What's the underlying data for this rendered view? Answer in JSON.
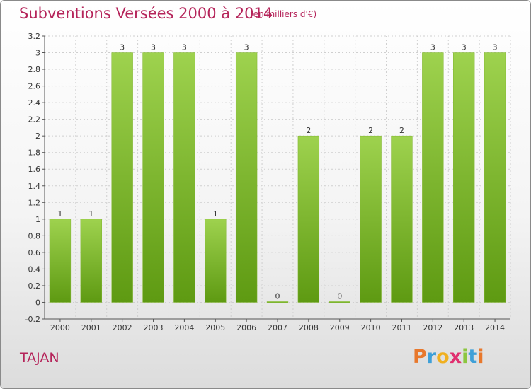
{
  "header": {
    "title": "Subventions Versées 2000 à 2014",
    "unit": "(en milliers d'€)"
  },
  "footer": {
    "commune": "TAJAN",
    "logo": {
      "letters": [
        "P",
        "r",
        "o",
        "x",
        "i",
        "t",
        "i"
      ],
      "colors": [
        "#e8782c",
        "#3fa0d8",
        "#f0b020",
        "#e03070",
        "#8cc63f",
        "#3fa0d8",
        "#e8782c"
      ]
    }
  },
  "chart_data": {
    "type": "bar",
    "title": "Subventions Versées 2000 à 2014",
    "subtitle": "(en milliers d'€)",
    "categories": [
      "2000",
      "2001",
      "2002",
      "2003",
      "2004",
      "2005",
      "2006",
      "2007",
      "2008",
      "2009",
      "2010",
      "2011",
      "2012",
      "2013",
      "2014"
    ],
    "values": [
      1,
      1,
      3,
      3,
      3,
      1,
      3,
      0,
      2,
      0,
      2,
      2,
      3,
      3,
      3
    ],
    "data_labels": [
      "1",
      "1",
      "3",
      "3",
      "3",
      "1",
      "3",
      "0",
      "2",
      "0",
      "2",
      "2",
      "3",
      "3",
      "3"
    ],
    "yticks": [
      "-0.2",
      "0",
      "0.2",
      "0.4",
      "0.6",
      "0.8",
      "1",
      "1.2",
      "1.4",
      "1.6",
      "1.8",
      "2",
      "2.2",
      "2.4",
      "2.6",
      "2.8",
      "3",
      "3.2"
    ],
    "ylim": [
      -0.2,
      3.2
    ],
    "grid": true,
    "colors": {
      "bar_top": "#9ed24e",
      "bar_bottom": "#5e9a12",
      "grid": "#cfcfcf"
    }
  }
}
